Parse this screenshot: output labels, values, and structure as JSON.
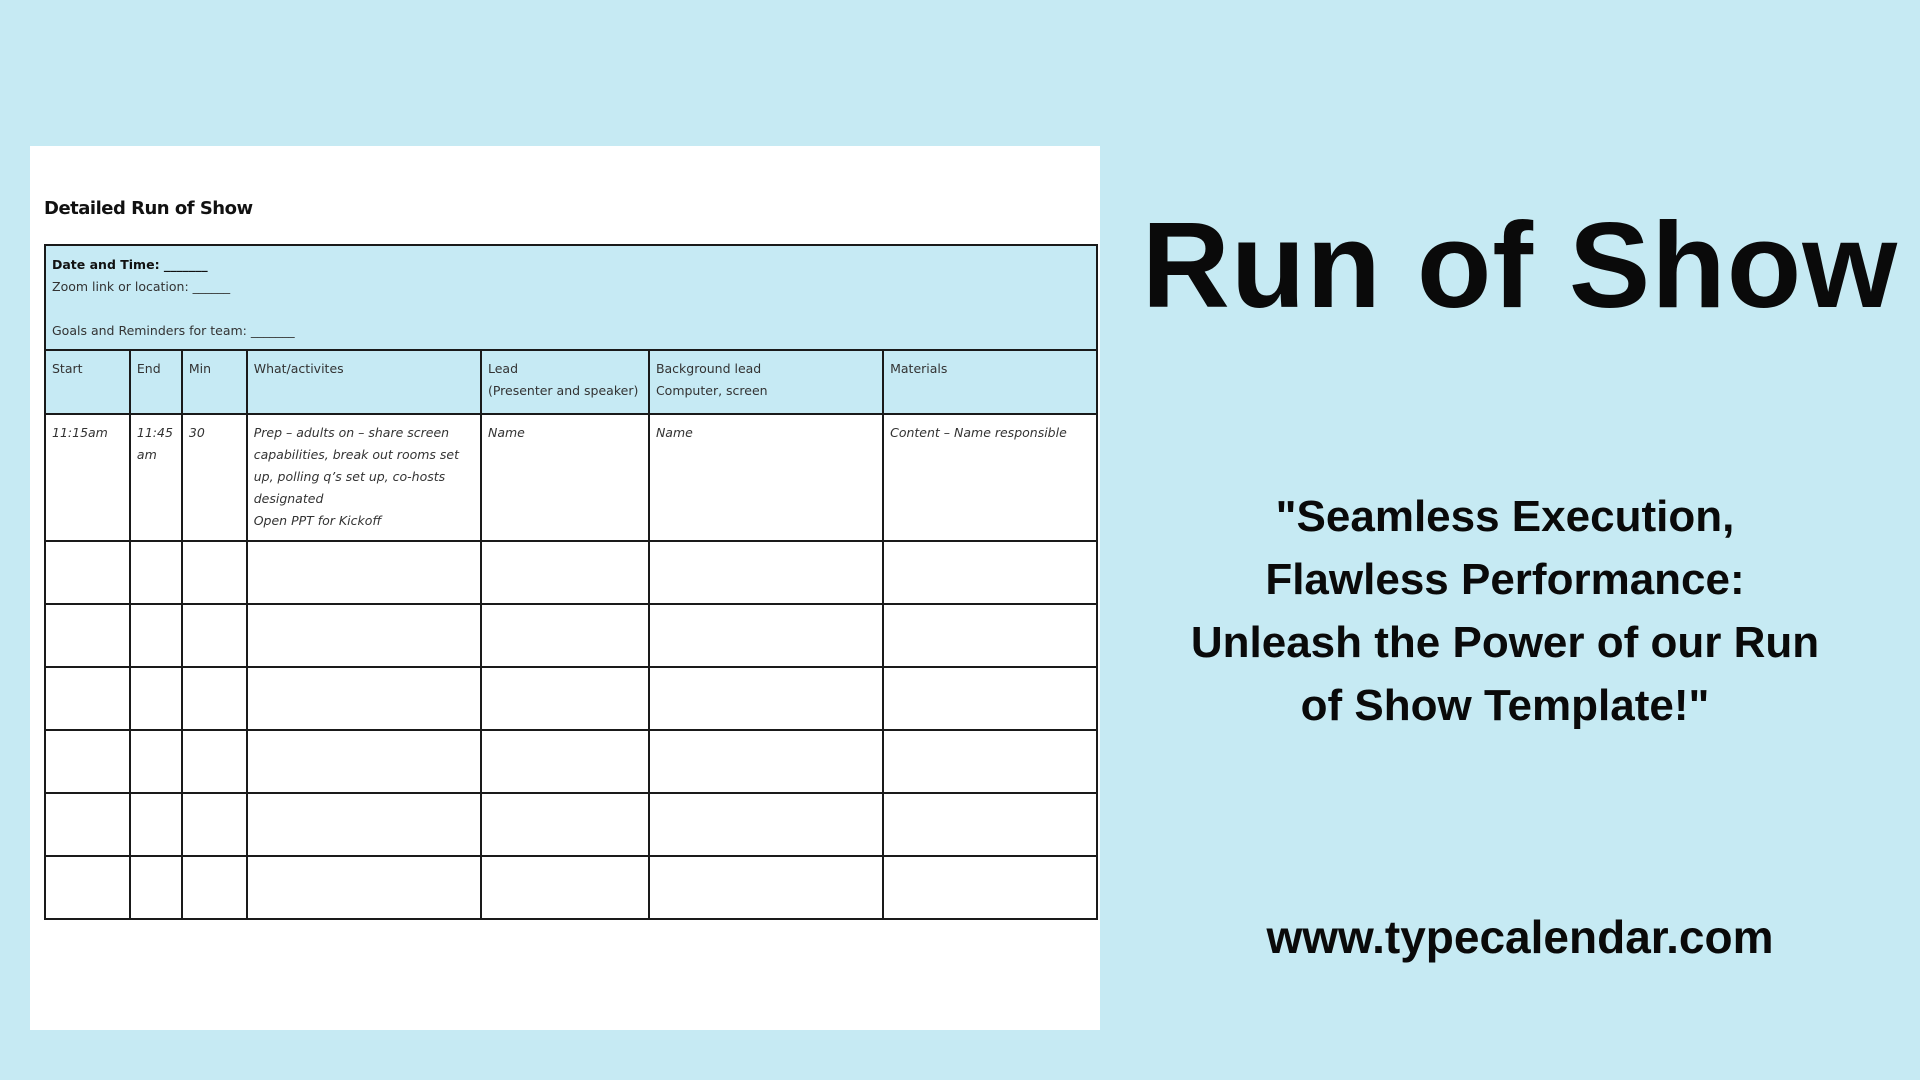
{
  "document": {
    "title": "Detailed Run of Show",
    "info": {
      "date_time": "Date and Time: _______",
      "zoom_link": "Zoom link or location: ______",
      "goals": "Goals and Reminders for team: _______"
    },
    "columns": [
      {
        "line1": "Start",
        "line2": ""
      },
      {
        "line1": "End",
        "line2": ""
      },
      {
        "line1": "Min",
        "line2": ""
      },
      {
        "line1": "What/activites",
        "line2": ""
      },
      {
        "line1": "Lead",
        "line2": "(Presenter and speaker)"
      },
      {
        "line1": "Background lead",
        "line2": "Computer, screen"
      },
      {
        "line1": "Materials",
        "line2": ""
      }
    ],
    "rows": [
      {
        "start": "11:15am",
        "end": "11:45 am",
        "min": "30",
        "what": [
          "Prep – adults on – share screen capabilities, break out rooms set up, polling q’s set up, co-hosts designated",
          "Open PPT for Kickoff"
        ],
        "lead": "Name",
        "background_lead": "Name",
        "materials": "Content – Name responsible"
      }
    ],
    "empty_rows": 6
  },
  "headline": "Run of Show",
  "tagline": "\"Seamless Execution, Flawless Performance: Unleash the Power of our Run of Show Template!\"",
  "website": "www.typecalendar.com",
  "colors": {
    "background": "#c6eaf3",
    "table_header": "#c6eaf4"
  }
}
